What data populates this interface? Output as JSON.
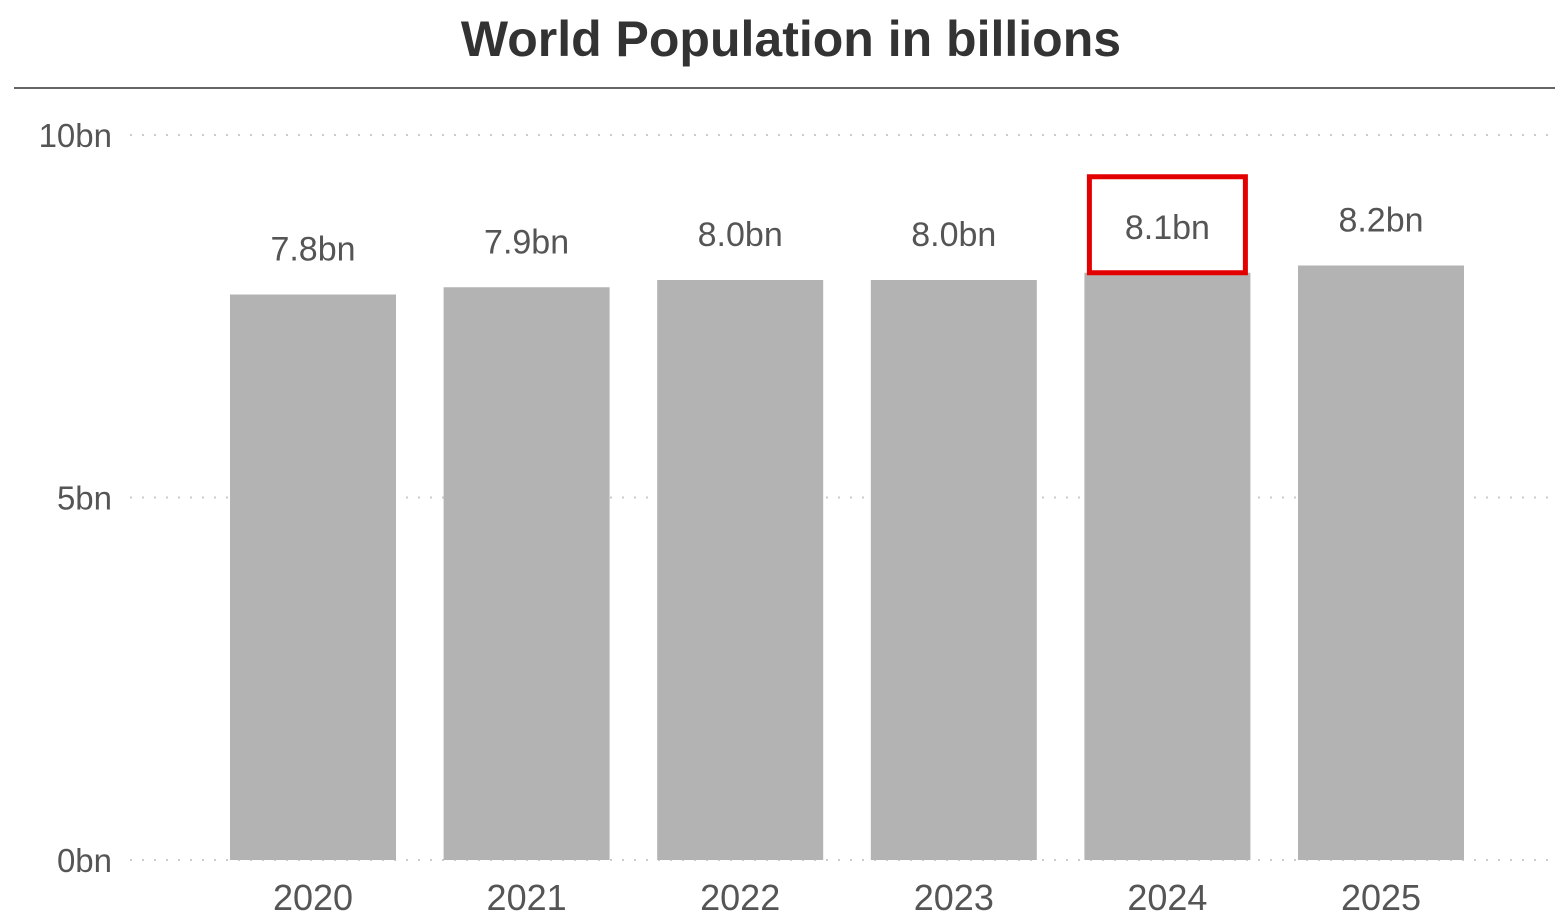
{
  "chart_data": {
    "type": "bar",
    "title": "World Population in billions",
    "xlabel": "",
    "ylabel": "",
    "categories": [
      "2020",
      "2021",
      "2022",
      "2023",
      "2024",
      "2025"
    ],
    "values": [
      7.8,
      7.9,
      8.0,
      8.0,
      8.1,
      8.2
    ],
    "data_labels": [
      "7.8bn",
      "7.9bn",
      "8.0bn",
      "8.0bn",
      "8.1bn",
      "8.2bn"
    ],
    "ylim": [
      0,
      10
    ],
    "y_ticks": [
      {
        "value": 0,
        "label": "0bn"
      },
      {
        "value": 5,
        "label": "5bn"
      },
      {
        "value": 10,
        "label": "10bn"
      }
    ],
    "grid": true,
    "legend": "none",
    "highlighted_category": "2024",
    "colors": {
      "bar": "#b3b3b3",
      "highlight_box": "#e30000",
      "text": "#555555",
      "title": "#333333",
      "grid": "#cccccc"
    }
  }
}
